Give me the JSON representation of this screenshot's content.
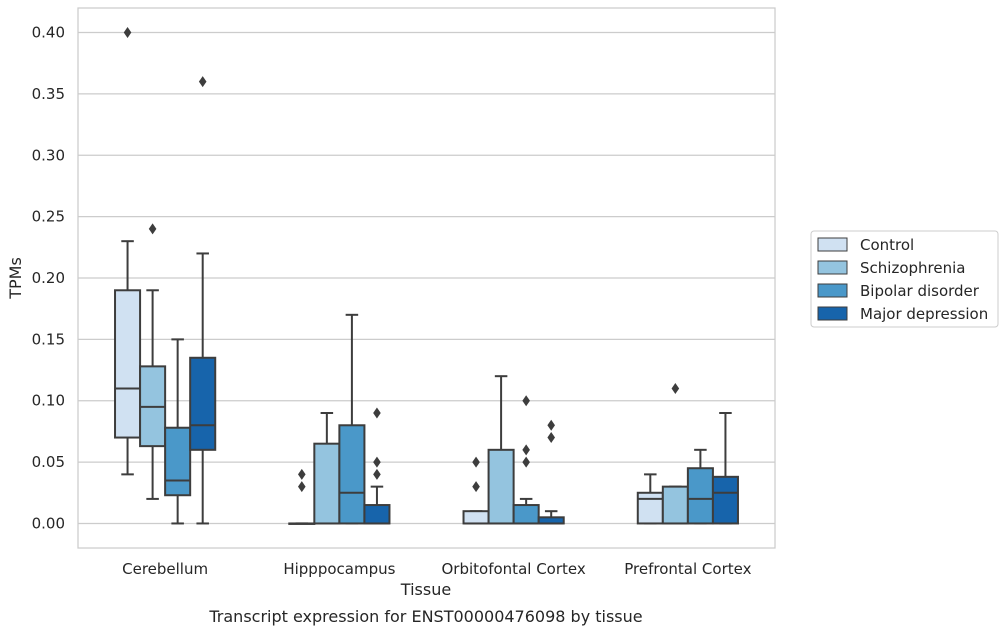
{
  "chart_data": {
    "type": "box",
    "title": "",
    "caption": "Transcript expression for ENST00000476098 by tissue",
    "xlabel": "Tissue",
    "ylabel": "TPMs",
    "ylim": [
      -0.02,
      0.42
    ],
    "yticks": [
      "0.00",
      "0.05",
      "0.10",
      "0.15",
      "0.20",
      "0.25",
      "0.30",
      "0.35",
      "0.40"
    ],
    "ytick_values": [
      0.0,
      0.05,
      0.1,
      0.15,
      0.2,
      0.25,
      0.3,
      0.35,
      0.4
    ],
    "grid": "horizontal",
    "legend_position": "right",
    "categories": [
      "Cerebellum",
      "Hipppocampus",
      "Orbitofontal Cortex",
      "Prefrontal Cortex"
    ],
    "series": [
      {
        "name": "Control",
        "color": "#d0e1f2",
        "boxes": [
          {
            "min": 0.04,
            "q1": 0.07,
            "median": 0.11,
            "q3": 0.19,
            "max": 0.23,
            "outliers": [
              0.4
            ]
          },
          {
            "min": 0.0,
            "q1": 0.0,
            "median": 0.0,
            "q3": 0.0,
            "max": 0.0,
            "outliers": [
              0.03,
              0.04
            ]
          },
          {
            "min": 0.0,
            "q1": 0.0,
            "median": 0.0,
            "q3": 0.01,
            "max": 0.01,
            "outliers": [
              0.03,
              0.05
            ]
          },
          {
            "min": 0.0,
            "q1": 0.0,
            "median": 0.02,
            "q3": 0.025,
            "max": 0.04,
            "outliers": []
          }
        ]
      },
      {
        "name": "Schizophrenia",
        "color": "#94c4df",
        "boxes": [
          {
            "min": 0.02,
            "q1": 0.063,
            "median": 0.095,
            "q3": 0.128,
            "max": 0.19,
            "outliers": [
              0.24
            ]
          },
          {
            "min": 0.0,
            "q1": 0.0,
            "median": 0.0,
            "q3": 0.065,
            "max": 0.09,
            "outliers": []
          },
          {
            "min": 0.0,
            "q1": 0.0,
            "median": 0.0,
            "q3": 0.06,
            "max": 0.12,
            "outliers": []
          },
          {
            "min": 0.0,
            "q1": 0.0,
            "median": 0.0,
            "q3": 0.03,
            "max": 0.03,
            "outliers": [
              0.11
            ]
          }
        ]
      },
      {
        "name": "Bipolar disorder",
        "color": "#4a98c9",
        "boxes": [
          {
            "min": 0.0,
            "q1": 0.023,
            "median": 0.035,
            "q3": 0.078,
            "max": 0.15,
            "outliers": []
          },
          {
            "min": 0.0,
            "q1": 0.0,
            "median": 0.025,
            "q3": 0.08,
            "max": 0.17,
            "outliers": []
          },
          {
            "min": 0.0,
            "q1": 0.0,
            "median": 0.0,
            "q3": 0.015,
            "max": 0.02,
            "outliers": [
              0.05,
              0.06,
              0.1
            ]
          },
          {
            "min": 0.0,
            "q1": 0.0,
            "median": 0.02,
            "q3": 0.045,
            "max": 0.06,
            "outliers": []
          }
        ]
      },
      {
        "name": "Major depression",
        "color": "#1764ab",
        "boxes": [
          {
            "min": 0.0,
            "q1": 0.06,
            "median": 0.08,
            "q3": 0.135,
            "max": 0.22,
            "outliers": [
              0.36
            ]
          },
          {
            "min": 0.0,
            "q1": 0.0,
            "median": 0.0,
            "q3": 0.015,
            "max": 0.03,
            "outliers": [
              0.04,
              0.05,
              0.09
            ]
          },
          {
            "min": 0.0,
            "q1": 0.0,
            "median": 0.0,
            "q3": 0.005,
            "max": 0.01,
            "outliers": [
              0.07,
              0.08
            ]
          },
          {
            "min": 0.0,
            "q1": 0.0,
            "median": 0.025,
            "q3": 0.038,
            "max": 0.09,
            "outliers": []
          }
        ]
      }
    ]
  }
}
